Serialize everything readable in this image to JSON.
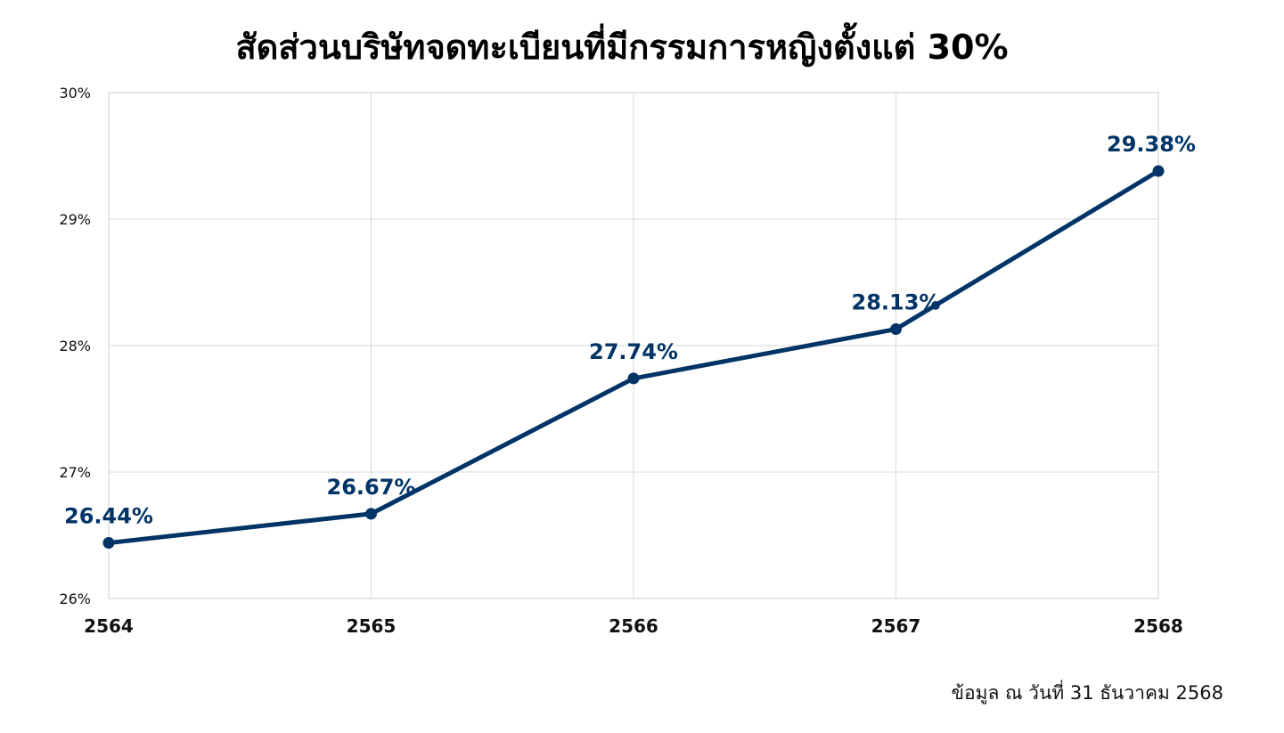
{
  "chart_data": {
    "type": "line",
    "title": "สัดส่วนบริษัทจดทะเบียนที่มีกรรมการหญิงตั้งแต่ 30%",
    "xlabel": "",
    "ylabel": "",
    "categories": [
      "2564",
      "2565",
      "2566",
      "2567",
      "2568"
    ],
    "series": [
      {
        "values": [
          26.44,
          26.67,
          27.74,
          28.13,
          29.38
        ],
        "labels": [
          "26.44%",
          "26.67%",
          "27.74%",
          "28.13%",
          "29.38%"
        ],
        "color": "#003366"
      }
    ],
    "ylim": [
      26,
      30
    ],
    "yticks": [
      26,
      27,
      28,
      29,
      30
    ],
    "ytick_labels": [
      "26%",
      "27%",
      "28%",
      "29%",
      "30%"
    ],
    "grid": true,
    "legend": "none"
  },
  "footnote": "ข้อมูล ณ วันที่ 31 ธันวาคม 2568",
  "colors": {
    "series": "#003366",
    "grid": "#d9d9d9",
    "text": "#111111"
  }
}
